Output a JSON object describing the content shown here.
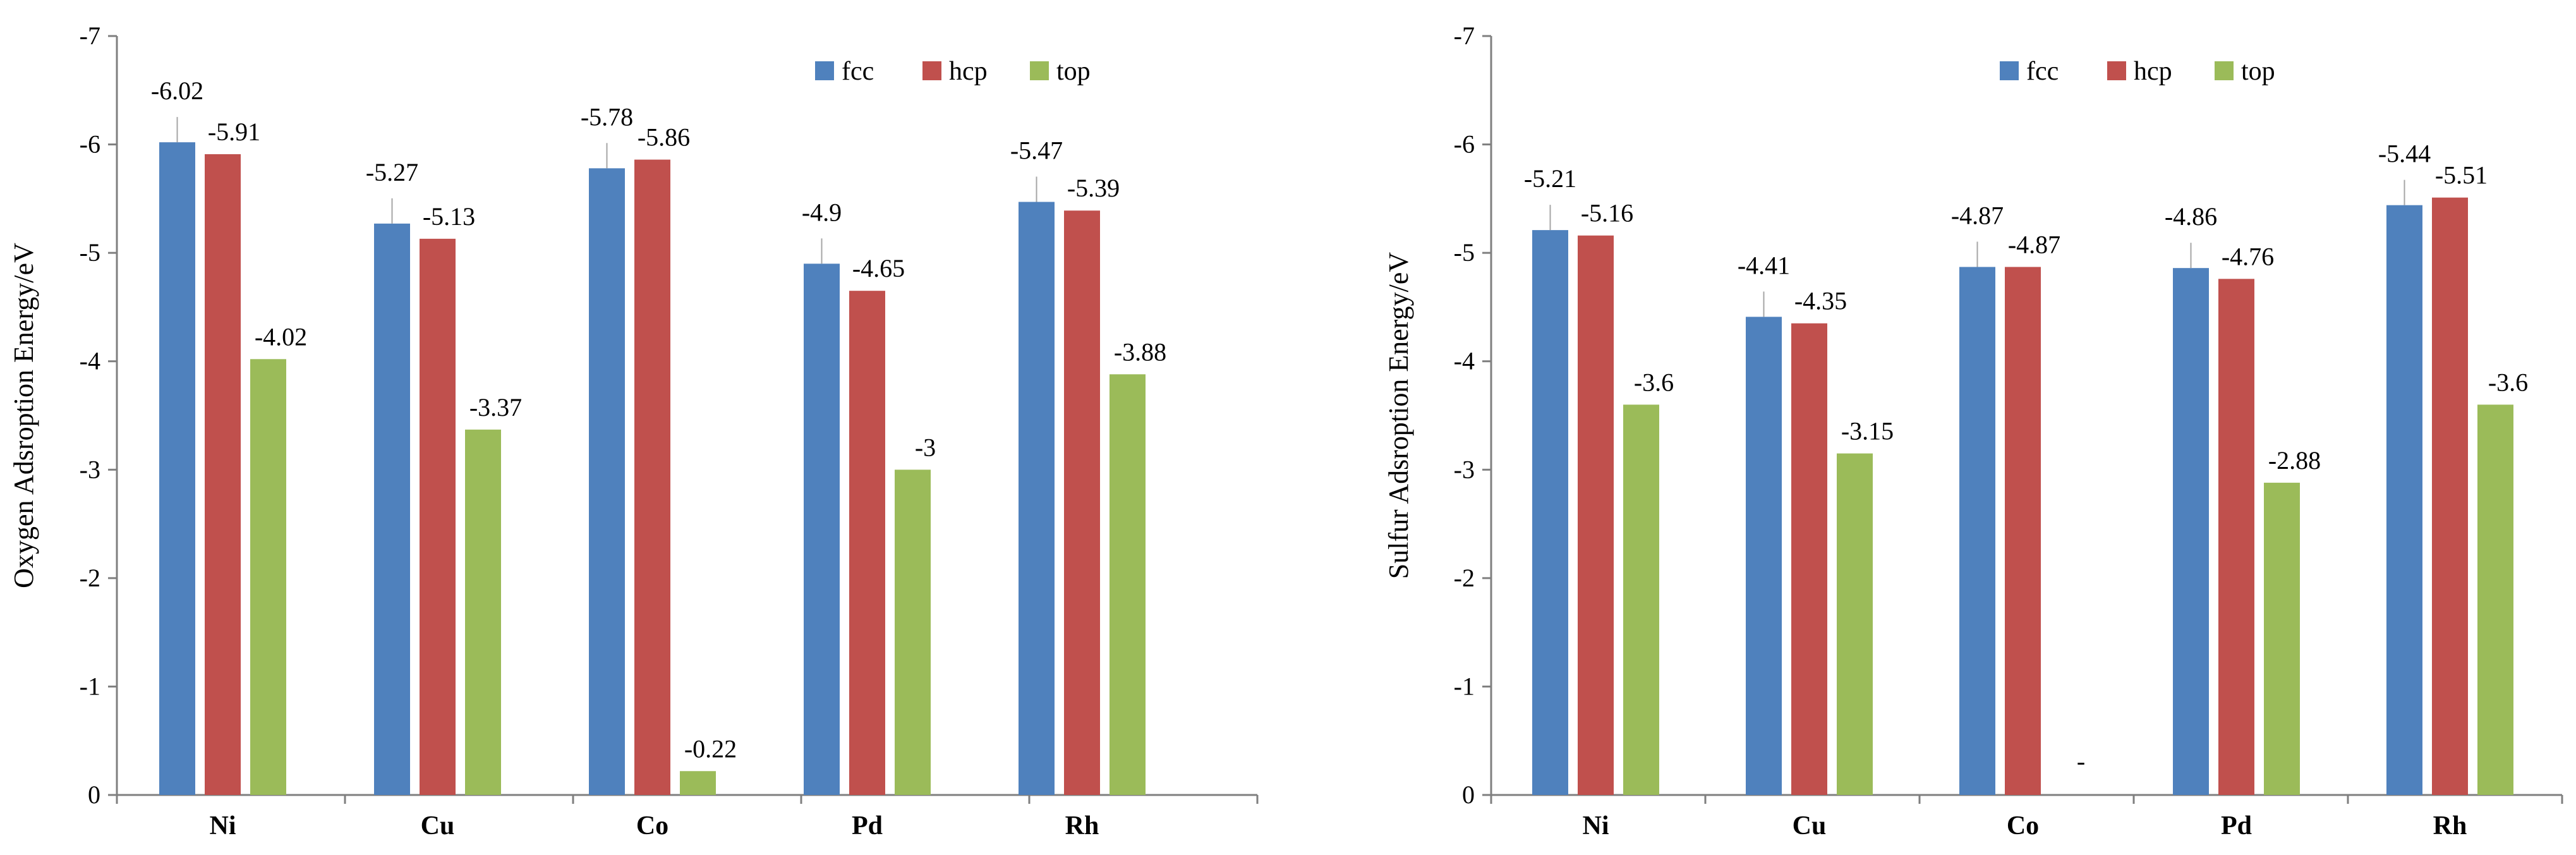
{
  "colors": {
    "fcc": "#4F81BD",
    "hcp": "#C0504D",
    "top": "#9BBB59",
    "axis": "#7f7f7f",
    "leader": "#a6a6a6"
  },
  "chart_data": [
    {
      "type": "bar",
      "title": "",
      "xlabel": "",
      "ylabel": "Oxygen Adsroption Energy/eV",
      "ylim": [
        0,
        -7
      ],
      "yticks": [
        "0",
        "-1",
        "-2",
        "-3",
        "-4",
        "-5",
        "-6",
        "-7"
      ],
      "grid": false,
      "legend": "top-right",
      "categories": [
        "Ni",
        "Cu",
        "Co",
        "Pd",
        "Rh"
      ],
      "series": [
        {
          "name": "fcc",
          "values": [
            -6.02,
            -5.27,
            -5.78,
            -4.9,
            -5.47
          ],
          "labels": [
            "-6.02",
            "-5.27",
            "-5.78",
            "-4.9",
            "-5.47"
          ]
        },
        {
          "name": "hcp",
          "values": [
            -5.91,
            -5.13,
            -5.86,
            -4.65,
            -5.39
          ],
          "labels": [
            "-5.91",
            "-5.13",
            "-5.86",
            "-4.65",
            "-5.39"
          ]
        },
        {
          "name": "top",
          "values": [
            -4.02,
            -3.37,
            -0.22,
            -3,
            -3.88
          ],
          "labels": [
            "-4.02",
            "-3.37",
            "-0.22",
            "-3",
            "-3.88"
          ]
        }
      ]
    },
    {
      "type": "bar",
      "title": "",
      "xlabel": "",
      "ylabel": "Sulfur Adsroption Energy/eV",
      "ylim": [
        0,
        -7
      ],
      "yticks": [
        "0",
        "-1",
        "-2",
        "-3",
        "-4",
        "-5",
        "-6",
        "-7"
      ],
      "grid": false,
      "legend": "top-right",
      "categories": [
        "Ni",
        "Cu",
        "Co",
        "Pd",
        "Rh"
      ],
      "series": [
        {
          "name": "fcc",
          "values": [
            -5.21,
            -4.41,
            -4.87,
            -4.86,
            -5.44
          ],
          "labels": [
            "-5.21",
            "-4.41",
            "-4.87",
            "-4.86",
            "-5.44"
          ]
        },
        {
          "name": "hcp",
          "values": [
            -5.16,
            -4.35,
            -4.87,
            -4.76,
            -5.51
          ],
          "labels": [
            "-5.16",
            "-4.35",
            "-4.87",
            "-4.76",
            "-5.51"
          ]
        },
        {
          "name": "top",
          "values": [
            -3.6,
            -3.15,
            null,
            -2.88,
            -3.6
          ],
          "labels": [
            "-3.6",
            "-3.15",
            "-",
            "-2.88",
            "-3.6"
          ]
        }
      ]
    }
  ]
}
